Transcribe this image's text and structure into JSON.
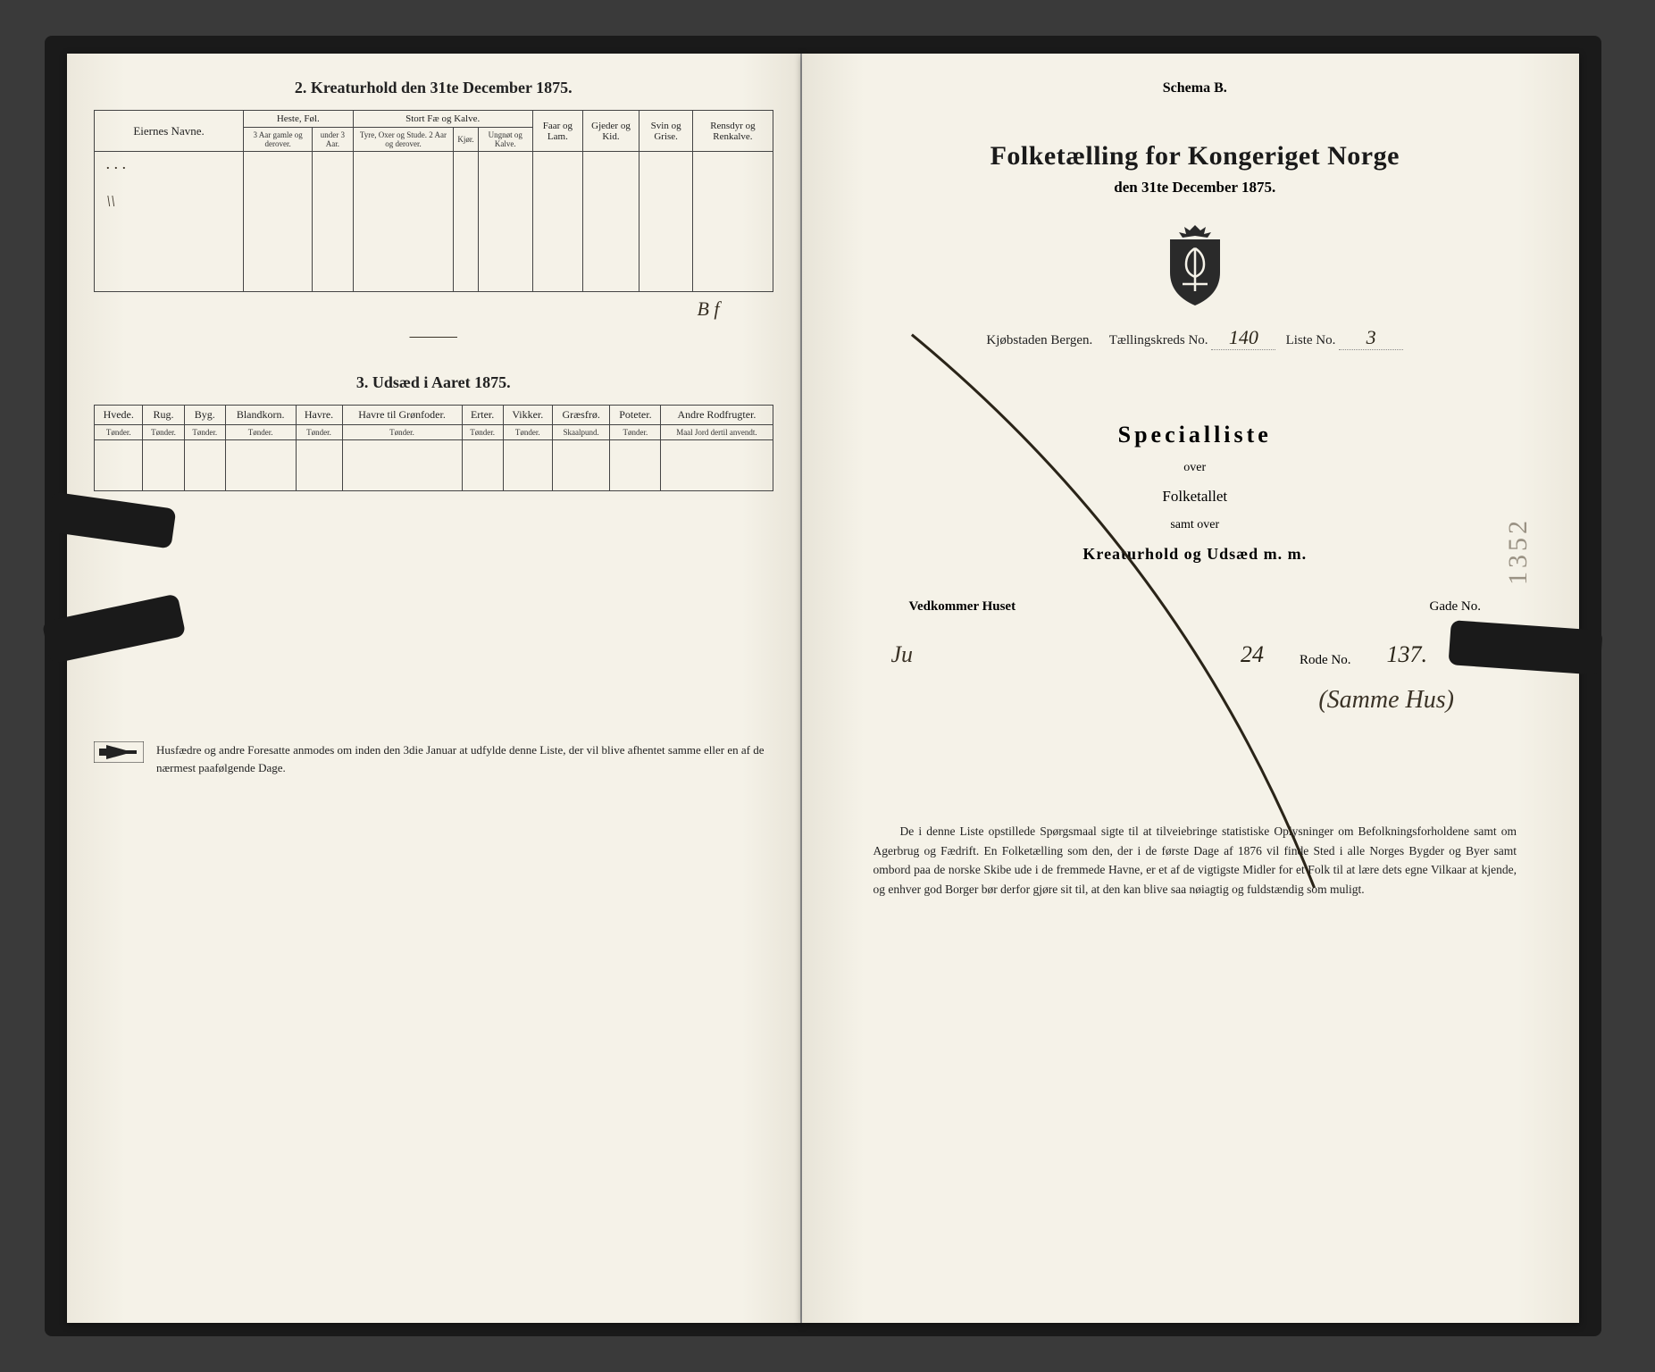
{
  "left_page": {
    "section2_title": "2.  Kreaturhold den 31te December 1875.",
    "table2": {
      "col_owner": "Eiernes Navne.",
      "grp_horses": "Heste, Føl.",
      "grp_cattle": "Stort Fæ og Kalve.",
      "col_sheep": "Faar og Lam.",
      "col_goats": "Gjeder og Kid.",
      "col_pigs": "Svin og Grise.",
      "col_reindeer": "Rensdyr og Renkalve.",
      "sub_h1": "3 Aar gamle og derover.",
      "sub_h2": "under 3 Aar.",
      "sub_c1": "Tyre, Oxer og Stude. 2 Aar og derover.",
      "sub_c2": "Kjør.",
      "sub_c3": "Ungnøt og Kalve."
    },
    "section3_title": "3.  Udsæd i Aaret 1875.",
    "table3": {
      "cols": [
        "Hvede.",
        "Rug.",
        "Byg.",
        "Blandkorn.",
        "Havre.",
        "Havre til Grønfoder.",
        "Erter.",
        "Vikker.",
        "Græsfrø.",
        "Poteter.",
        "Andre Rodfrugter."
      ],
      "units": [
        "Tønder.",
        "Tønder.",
        "Tønder.",
        "Tønder.",
        "Tønder.",
        "Tønder.",
        "Tønder.",
        "Tønder.",
        "Skaalpund.",
        "Tønder.",
        "Maal Jord dertil anvendt."
      ]
    },
    "footnote": "Husfædre og andre Foresatte anmodes om inden den 3die Januar at udfylde denne Liste, der vil blive afhentet samme eller en af de nærmest paafølgende Dage."
  },
  "right_page": {
    "schema": "Schema B.",
    "main_title": "Folketælling for Kongeriget Norge",
    "sub_date": "den 31te December 1875.",
    "loc_label_city": "Kjøbstaden Bergen.",
    "loc_label_kreds": "Tællingskreds No.",
    "loc_kreds_val": "140",
    "loc_label_liste": "Liste No.",
    "loc_liste_val": "3",
    "special_title": "Specialliste",
    "sub1": "over",
    "sub2": "Folketallet",
    "sub3": "samt over",
    "sub4": "Kreaturhold og Udsæd m. m.",
    "addr_label1": "Vedkommer Huset",
    "addr_label2": "Gade No.",
    "addr_val1": "24",
    "addr_label3": "Rode No.",
    "addr_val2": "137.",
    "bottom_hand": "(Samme Hus)",
    "bottom_para": "De i denne Liste opstillede Spørgsmaal sigte til at tilveiebringe statistiske Oplysninger om Befolkningsforholdene samt om Agerbrug og Fædrift.  En Folketælling som den, der i de første Dage af 1876 vil finde Sted i alle Norges Bygder og Byer samt ombord paa de norske Skibe ude i de fremmede Havne, er et af de vigtigste Midler for et Folk til at lære dets egne Vilkaar at kjende, og enhver god Borger bør derfor gjøre sit til, at den kan blive saa nøiagtig og fuldstændig som muligt.",
    "page_number": "1352"
  },
  "colors": {
    "paper": "#f5f2e8",
    "ink": "#222222",
    "hand": "#3a3226"
  }
}
